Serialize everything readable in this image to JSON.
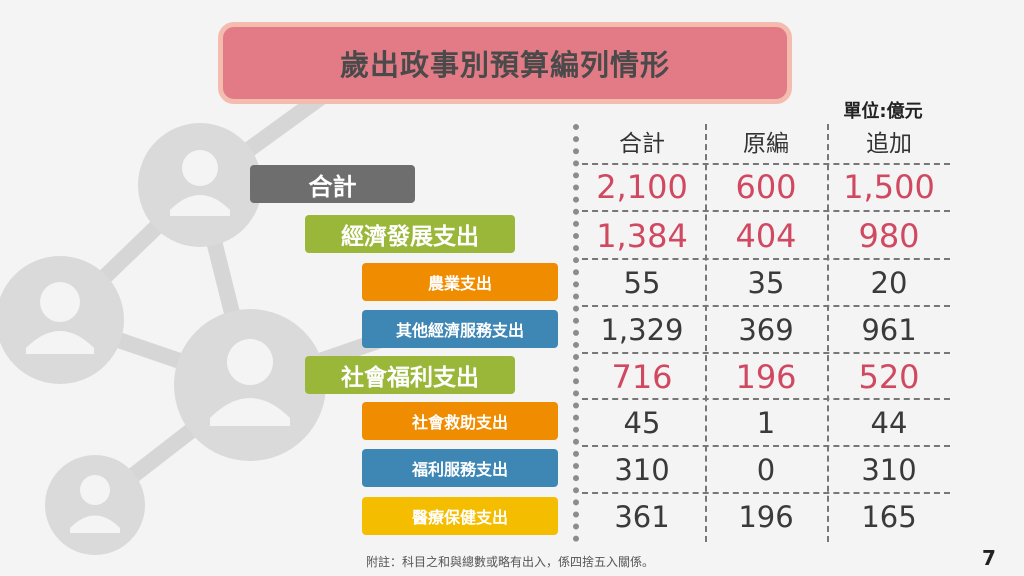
{
  "title": "歲出政事別預算編列情形",
  "unit": "單位:億元",
  "columns": [
    "合計",
    "原編",
    "追加"
  ],
  "rows": [
    {
      "label": "合計",
      "values": [
        "2,100",
        "600",
        "1,500"
      ]
    },
    {
      "label": "經濟發展支出",
      "values": [
        "1,384",
        "404",
        "980"
      ]
    },
    {
      "label": "農業支出",
      "values": [
        "55",
        "35",
        "20"
      ]
    },
    {
      "label": "其他經濟服務支出",
      "values": [
        "1,329",
        "369",
        "961"
      ]
    },
    {
      "label": "社會福利支出",
      "values": [
        "716",
        "196",
        "520"
      ]
    },
    {
      "label": "社會救助支出",
      "values": [
        "45",
        "1",
        "44"
      ]
    },
    {
      "label": "福利服務支出",
      "values": [
        "310",
        "0",
        "310"
      ]
    },
    {
      "label": "醫療保健支出",
      "values": [
        "361",
        "196",
        "165"
      ]
    }
  ],
  "footnote": "附註：科目之和與總數或略有出入，係四捨五入關係。",
  "page_number": "7",
  "colors": {
    "title_bg": "#e27b86",
    "emphasis_value": "#d04961",
    "total_label": "#6e6e6e",
    "category_label": "#9ab73a",
    "orange_label": "#f08c00",
    "blue_label": "#3e86b4",
    "yellow_label": "#f5bd00"
  },
  "icons": [
    "network-background-icon",
    "person-icon"
  ]
}
